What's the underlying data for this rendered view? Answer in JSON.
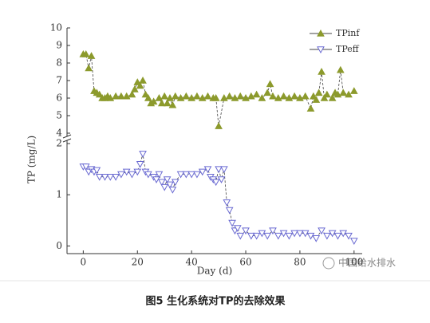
{
  "chart_data": {
    "type": "line",
    "x_label": "Day (d)",
    "y_label": "TP (mg/L)",
    "xlim": [
      -6,
      103
    ],
    "xticks": [
      0,
      20,
      40,
      60,
      80,
      100
    ],
    "ylim": [
      -0.15,
      10
    ],
    "ybreak": [
      2,
      4
    ],
    "yticks": [
      0,
      1,
      2,
      4,
      5,
      6,
      7,
      8,
      9,
      10
    ],
    "series": [
      {
        "name": "TPinf",
        "color": "#8c9a2c",
        "marker": "triangle-up",
        "x": [
          0,
          1,
          2,
          3,
          4,
          5,
          6,
          7,
          8,
          9,
          10,
          12,
          14,
          16,
          18,
          19,
          20,
          21,
          22,
          23,
          24,
          25,
          26,
          28,
          29,
          30,
          31,
          32,
          33,
          34,
          36,
          38,
          40,
          42,
          44,
          46,
          48,
          49,
          50,
          52,
          54,
          56,
          58,
          60,
          62,
          64,
          66,
          68,
          69,
          70,
          72,
          74,
          76,
          78,
          80,
          82,
          84,
          85,
          86,
          87,
          88,
          89,
          90,
          92,
          93,
          94,
          95,
          96,
          98,
          100
        ],
        "values": [
          8.5,
          8.5,
          7.7,
          8.4,
          6.4,
          6.3,
          6.2,
          6.0,
          6.0,
          6.1,
          6.0,
          6.1,
          6.1,
          6.1,
          6.2,
          6.5,
          6.9,
          6.7,
          7.0,
          6.2,
          6.0,
          5.7,
          5.8,
          6.0,
          5.7,
          6.1,
          5.7,
          6.0,
          5.6,
          6.1,
          6.0,
          6.1,
          6.0,
          6.1,
          6.0,
          6.1,
          6.0,
          6.0,
          4.4,
          6.0,
          6.1,
          6.0,
          6.1,
          6.0,
          6.1,
          6.2,
          6.0,
          6.3,
          6.8,
          6.1,
          6.0,
          6.1,
          6.0,
          6.1,
          6.0,
          6.1,
          5.4,
          6.1,
          5.9,
          6.3,
          7.5,
          6.0,
          6.2,
          6.0,
          6.3,
          6.2,
          7.6,
          6.3,
          6.2,
          6.4
        ]
      },
      {
        "name": "TPeff",
        "color": "#6a6ad2",
        "marker": "triangle-down",
        "x": [
          0,
          1,
          2,
          3,
          4,
          5,
          6,
          8,
          10,
          12,
          14,
          16,
          18,
          20,
          21,
          22,
          23,
          24,
          26,
          27,
          28,
          29,
          30,
          31,
          32,
          33,
          34,
          36,
          38,
          40,
          42,
          44,
          46,
          47,
          48,
          49,
          50,
          51,
          52,
          53,
          54,
          55,
          56,
          57,
          58,
          60,
          62,
          64,
          66,
          68,
          70,
          72,
          74,
          76,
          78,
          80,
          82,
          84,
          86,
          88,
          90,
          92,
          94,
          96,
          98,
          100
        ],
        "values": [
          1.55,
          1.55,
          1.45,
          1.5,
          1.45,
          1.48,
          1.35,
          1.35,
          1.35,
          1.35,
          1.4,
          1.45,
          1.4,
          1.45,
          1.6,
          1.8,
          1.45,
          1.4,
          1.35,
          1.3,
          1.4,
          1.25,
          1.15,
          1.3,
          1.2,
          1.1,
          1.25,
          1.4,
          1.4,
          1.4,
          1.4,
          1.45,
          1.5,
          1.35,
          1.3,
          1.25,
          1.5,
          1.3,
          1.5,
          0.85,
          0.7,
          0.45,
          0.3,
          0.35,
          0.2,
          0.3,
          0.2,
          0.2,
          0.25,
          0.2,
          0.3,
          0.2,
          0.25,
          0.2,
          0.25,
          0.25,
          0.25,
          0.2,
          0.15,
          0.3,
          0.2,
          0.25,
          0.2,
          0.25,
          0.2,
          0.1
        ]
      }
    ],
    "legend": "upper-right",
    "watermark": "中国给水排水",
    "caption": "图5 生化系统对TP的去除效果"
  }
}
